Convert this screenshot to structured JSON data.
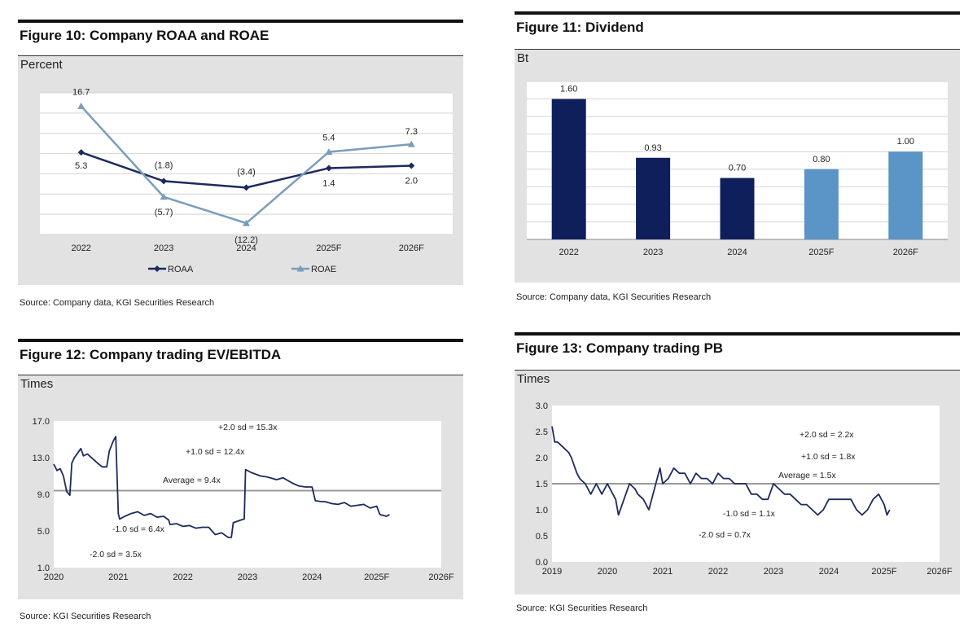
{
  "chart_data": [
    {
      "type": "line",
      "title": "Figure 10: Company ROAA and ROAE",
      "ylabel": "Percent",
      "categories": [
        "2022",
        "2023",
        "2024",
        "2025F",
        "2026F"
      ],
      "ylim": [
        -15,
        20
      ],
      "grid": true,
      "series": [
        {
          "name": "ROAA",
          "values": [
            5.3,
            -1.8,
            -3.4,
            1.4,
            2.0
          ],
          "labels": [
            "5.3",
            "(1.8)",
            "(3.4)",
            "1.4",
            "2.0"
          ],
          "color": "#1c2a5e"
        },
        {
          "name": "ROAE",
          "values": [
            16.7,
            -5.7,
            -12.2,
            5.4,
            7.3
          ],
          "labels": [
            "16.7",
            "(5.7)",
            "(12.2)",
            "5.4",
            "7.3"
          ],
          "color": "#7a9dbd"
        }
      ],
      "legend": "bottom",
      "source": "Source: Company data, KGI Securities Research"
    },
    {
      "type": "bar",
      "title": "Figure 11: Dividend",
      "ylabel": "Bt",
      "categories": [
        "2022",
        "2023",
        "2024",
        "2025F",
        "2026F"
      ],
      "values": [
        1.6,
        0.93,
        0.7,
        0.8,
        1.0
      ],
      "labels": [
        "1.60",
        "0.93",
        "0.70",
        "0.80",
        "1.00"
      ],
      "colors": [
        "#0f1f5c",
        "#0f1f5c",
        "#0f1f5c",
        "#5b94c7",
        "#5b94c7"
      ],
      "ylim": [
        0,
        1.8
      ],
      "grid": true,
      "source": "Source: Company data, KGI Securities Research"
    },
    {
      "type": "line",
      "title": "Figure 12: Company trading EV/EBITDA",
      "ylabel": "Times",
      "yticks": [
        "17.0",
        "13.0",
        "9.0",
        "5.0",
        "1.0"
      ],
      "ylim": [
        1,
        17
      ],
      "xticks": [
        "2020",
        "2021",
        "2022",
        "2023",
        "2024",
        "2025F",
        "2026F"
      ],
      "xlim": [
        2020,
        2026
      ],
      "average": 9.4,
      "annotations": [
        "+2.0 sd = 15.3x",
        "+1.0 sd = 12.4x",
        "Average = 9.4x",
        "-1.0 sd = 6.4x",
        "-2.0 sd = 3.5x"
      ],
      "series": [
        {
          "name": "EV/EBITDA",
          "points": [
            [
              2020.0,
              12.3
            ],
            [
              2020.05,
              11.6
            ],
            [
              2020.1,
              11.8
            ],
            [
              2020.15,
              11.0
            ],
            [
              2020.2,
              9.3
            ],
            [
              2020.25,
              8.9
            ],
            [
              2020.28,
              12.4
            ],
            [
              2020.32,
              13.0
            ],
            [
              2020.38,
              13.6
            ],
            [
              2020.42,
              14.0
            ],
            [
              2020.46,
              13.2
            ],
            [
              2020.52,
              13.4
            ],
            [
              2020.6,
              12.9
            ],
            [
              2020.68,
              12.4
            ],
            [
              2020.75,
              12.0
            ],
            [
              2020.82,
              12.0
            ],
            [
              2020.86,
              13.7
            ],
            [
              2020.92,
              14.8
            ],
            [
              2020.96,
              15.3
            ],
            [
              2021.0,
              6.9
            ],
            [
              2021.02,
              6.3
            ],
            [
              2021.1,
              6.6
            ],
            [
              2021.2,
              6.9
            ],
            [
              2021.3,
              7.1
            ],
            [
              2021.4,
              6.7
            ],
            [
              2021.5,
              6.9
            ],
            [
              2021.6,
              6.5
            ],
            [
              2021.7,
              6.6
            ],
            [
              2021.78,
              6.2
            ],
            [
              2021.8,
              5.7
            ],
            [
              2021.9,
              5.8
            ],
            [
              2022.0,
              5.5
            ],
            [
              2022.1,
              5.6
            ],
            [
              2022.2,
              5.3
            ],
            [
              2022.3,
              5.4
            ],
            [
              2022.4,
              5.4
            ],
            [
              2022.5,
              4.6
            ],
            [
              2022.6,
              4.8
            ],
            [
              2022.7,
              4.3
            ],
            [
              2022.75,
              4.3
            ],
            [
              2022.78,
              5.9
            ],
            [
              2022.9,
              6.2
            ],
            [
              2022.95,
              6.3
            ],
            [
              2022.97,
              11.7
            ],
            [
              2023.05,
              11.4
            ],
            [
              2023.2,
              11.0
            ],
            [
              2023.3,
              10.9
            ],
            [
              2023.45,
              10.6
            ],
            [
              2023.55,
              10.8
            ],
            [
              2023.7,
              10.2
            ],
            [
              2023.8,
              9.9
            ],
            [
              2023.9,
              9.8
            ],
            [
              2024.0,
              9.8
            ],
            [
              2024.05,
              8.3
            ],
            [
              2024.15,
              8.2
            ],
            [
              2024.2,
              8.2
            ],
            [
              2024.3,
              8.0
            ],
            [
              2024.4,
              7.9
            ],
            [
              2024.5,
              8.1
            ],
            [
              2024.6,
              7.7
            ],
            [
              2024.7,
              7.8
            ],
            [
              2024.8,
              7.9
            ],
            [
              2024.9,
              7.5
            ],
            [
              2025.0,
              7.7
            ],
            [
              2025.05,
              6.8
            ],
            [
              2025.15,
              6.6
            ],
            [
              2025.2,
              6.8
            ]
          ]
        }
      ],
      "source": "Source: KGI Securities Research"
    },
    {
      "type": "line",
      "title": "Figure 13: Company trading PB",
      "ylabel": "Times",
      "yticks": [
        "3.0",
        "2.5",
        "2.0",
        "1.5",
        "1.0",
        "0.5",
        "0.0"
      ],
      "ylim": [
        0,
        3
      ],
      "xticks": [
        "2019",
        "2020",
        "2021",
        "2022",
        "2023",
        "2024",
        "2025F",
        "2026F"
      ],
      "xlim": [
        2019,
        2026
      ],
      "average": 1.5,
      "annotations": [
        "+2.0 sd = 2.2x",
        "+1.0 sd = 1.8x",
        "Average = 1.5x",
        "-1.0 sd = 1.1x",
        "-2.0 sd = 0.7x"
      ],
      "series": [
        {
          "name": "PB",
          "points": [
            [
              2019.0,
              2.6
            ],
            [
              2019.05,
              2.3
            ],
            [
              2019.1,
              2.3
            ],
            [
              2019.2,
              2.2
            ],
            [
              2019.3,
              2.1
            ],
            [
              2019.35,
              2.0
            ],
            [
              2019.45,
              1.7
            ],
            [
              2019.5,
              1.6
            ],
            [
              2019.6,
              1.5
            ],
            [
              2019.7,
              1.3
            ],
            [
              2019.8,
              1.5
            ],
            [
              2019.9,
              1.3
            ],
            [
              2020.0,
              1.5
            ],
            [
              2020.1,
              1.3
            ],
            [
              2020.15,
              1.2
            ],
            [
              2020.2,
              0.9
            ],
            [
              2020.3,
              1.2
            ],
            [
              2020.4,
              1.5
            ],
            [
              2020.5,
              1.4
            ],
            [
              2020.55,
              1.3
            ],
            [
              2020.65,
              1.2
            ],
            [
              2020.75,
              1.0
            ],
            [
              2020.8,
              1.2
            ],
            [
              2020.9,
              1.6
            ],
            [
              2020.95,
              1.8
            ],
            [
              2021.0,
              1.5
            ],
            [
              2021.1,
              1.6
            ],
            [
              2021.2,
              1.8
            ],
            [
              2021.3,
              1.7
            ],
            [
              2021.4,
              1.7
            ],
            [
              2021.5,
              1.5
            ],
            [
              2021.6,
              1.7
            ],
            [
              2021.7,
              1.6
            ],
            [
              2021.8,
              1.6
            ],
            [
              2021.9,
              1.5
            ],
            [
              2022.0,
              1.7
            ],
            [
              2022.1,
              1.6
            ],
            [
              2022.2,
              1.6
            ],
            [
              2022.3,
              1.5
            ],
            [
              2022.5,
              1.5
            ],
            [
              2022.6,
              1.3
            ],
            [
              2022.7,
              1.3
            ],
            [
              2022.8,
              1.2
            ],
            [
              2022.9,
              1.2
            ],
            [
              2023.0,
              1.5
            ],
            [
              2023.1,
              1.4
            ],
            [
              2023.2,
              1.3
            ],
            [
              2023.3,
              1.3
            ],
            [
              2023.4,
              1.2
            ],
            [
              2023.5,
              1.1
            ],
            [
              2023.6,
              1.1
            ],
            [
              2023.7,
              1.0
            ],
            [
              2023.8,
              0.9
            ],
            [
              2023.9,
              1.0
            ],
            [
              2024.0,
              1.2
            ],
            [
              2024.1,
              1.2
            ],
            [
              2024.2,
              1.2
            ],
            [
              2024.3,
              1.2
            ],
            [
              2024.4,
              1.2
            ],
            [
              2024.5,
              1.0
            ],
            [
              2024.6,
              0.9
            ],
            [
              2024.7,
              1.0
            ],
            [
              2024.8,
              1.2
            ],
            [
              2024.9,
              1.3
            ],
            [
              2025.0,
              1.1
            ],
            [
              2025.05,
              0.9
            ],
            [
              2025.1,
              1.0
            ]
          ]
        }
      ],
      "source": "Source: KGI Securities Research"
    }
  ]
}
